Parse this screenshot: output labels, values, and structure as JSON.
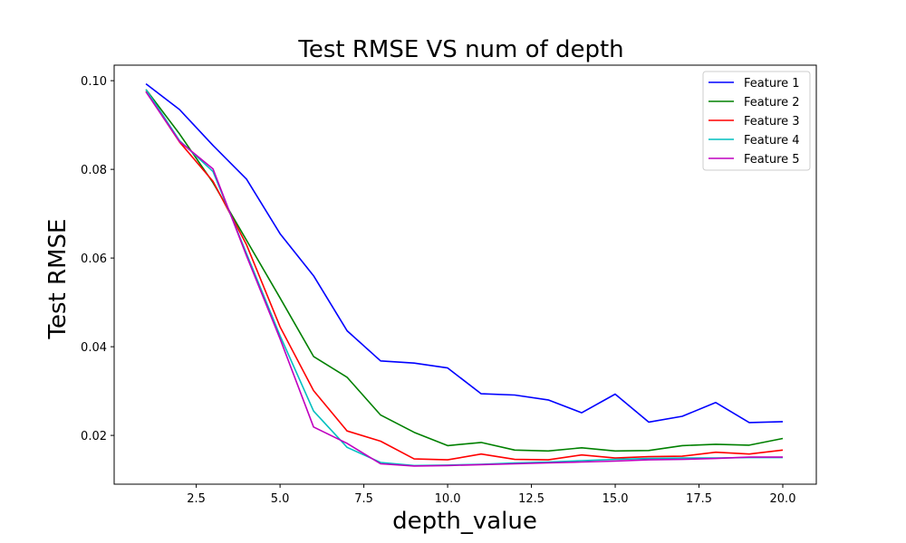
{
  "chart_data": {
    "type": "line",
    "title": "Test RMSE VS num of depth",
    "xlabel": "depth_value",
    "ylabel": "Test RMSE",
    "xlim": [
      0.05,
      21.0
    ],
    "ylim": [
      0.009,
      0.1035
    ],
    "xticks": [
      2.5,
      5.0,
      7.5,
      10.0,
      12.5,
      15.0,
      17.5,
      20.0
    ],
    "xtick_labels": [
      "2.5",
      "5.0",
      "7.5",
      "10.0",
      "12.5",
      "15.0",
      "17.5",
      "20.0"
    ],
    "yticks": [
      0.02,
      0.04,
      0.06,
      0.08,
      0.1
    ],
    "ytick_labels": [
      "0.02",
      "0.04",
      "0.06",
      "0.08",
      "0.10"
    ],
    "grid": false,
    "legend_position": "top-right",
    "x": [
      1,
      2,
      3,
      4,
      5,
      6,
      7,
      8,
      9,
      10,
      11,
      12,
      13,
      14,
      15,
      16,
      17,
      18,
      19,
      20
    ],
    "series": [
      {
        "name": "Feature 1",
        "color": "#0000ff",
        "values": [
          0.0993,
          0.0935,
          0.0854,
          0.0778,
          0.0655,
          0.056,
          0.0436,
          0.0368,
          0.0363,
          0.0352,
          0.0294,
          0.0291,
          0.028,
          0.0251,
          0.0293,
          0.023,
          0.0243,
          0.0274,
          0.0229,
          0.0231
        ]
      },
      {
        "name": "Feature 2",
        "color": "#008000",
        "values": [
          0.098,
          0.088,
          0.077,
          0.064,
          0.051,
          0.0378,
          0.0331,
          0.0246,
          0.0207,
          0.0177,
          0.0184,
          0.0167,
          0.0165,
          0.0172,
          0.0165,
          0.0166,
          0.0177,
          0.018,
          0.0178,
          0.0193
        ]
      },
      {
        "name": "Feature 3",
        "color": "#ff0000",
        "values": [
          0.0976,
          0.0862,
          0.0773,
          0.063,
          0.0445,
          0.0301,
          0.021,
          0.0187,
          0.0147,
          0.0145,
          0.0158,
          0.0146,
          0.0145,
          0.0156,
          0.0149,
          0.0152,
          0.0153,
          0.0162,
          0.0158,
          0.0167
        ]
      },
      {
        "name": "Feature 4",
        "color": "#00bfbf",
        "values": [
          0.098,
          0.0865,
          0.0795,
          0.061,
          0.0425,
          0.0255,
          0.0173,
          0.0139,
          0.0132,
          0.0133,
          0.0135,
          0.0138,
          0.014,
          0.0143,
          0.0146,
          0.0148,
          0.0149,
          0.0149,
          0.015,
          0.015
        ]
      },
      {
        "name": "Feature 5",
        "color": "#bf00bf",
        "values": [
          0.0975,
          0.0863,
          0.0801,
          0.0605,
          0.0418,
          0.0219,
          0.0182,
          0.0136,
          0.0131,
          0.0132,
          0.0134,
          0.0136,
          0.0138,
          0.014,
          0.0142,
          0.0145,
          0.0146,
          0.0148,
          0.0151,
          0.0151
        ]
      }
    ]
  }
}
